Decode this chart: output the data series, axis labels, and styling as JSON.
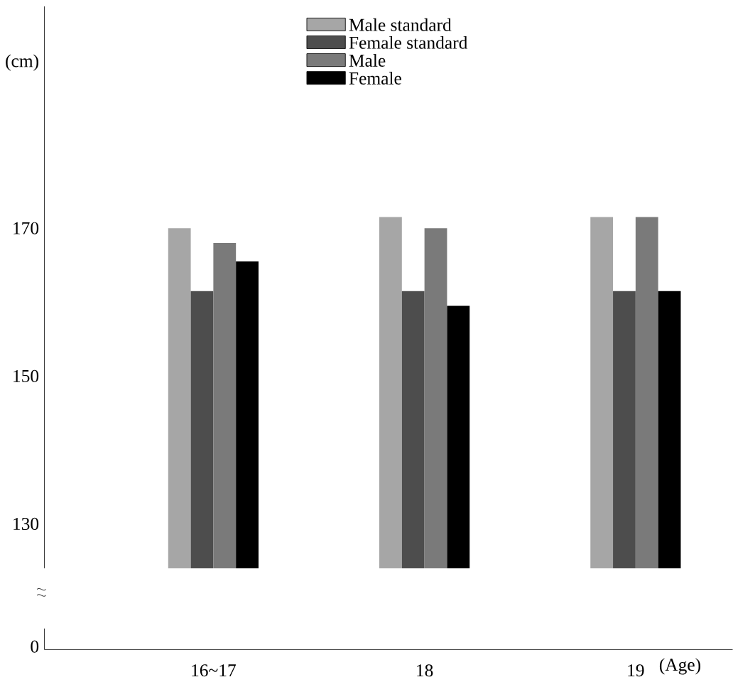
{
  "chart_data": {
    "type": "bar",
    "ylabel": "(cm)",
    "xlabel": "(Age)",
    "categories": [
      "16~17",
      "18",
      "19"
    ],
    "series": [
      {
        "name": "Male standard",
        "color": "#a6a6a6",
        "values": [
          170,
          171.5,
          171.5
        ]
      },
      {
        "name": "Female standard",
        "color": "#4d4d4d",
        "values": [
          161.5,
          161.5,
          161.5
        ]
      },
      {
        "name": "Male",
        "color": "#7a7a7a",
        "values": [
          168,
          170,
          171.5
        ]
      },
      {
        "name": "Female",
        "color": "#000000",
        "values": [
          165.5,
          159.5,
          161.5
        ]
      }
    ],
    "ylim": [
      124,
      200
    ],
    "yticks": [
      130,
      150,
      170
    ],
    "annotations": [
      "0"
    ],
    "legend": "top",
    "grid": false
  }
}
